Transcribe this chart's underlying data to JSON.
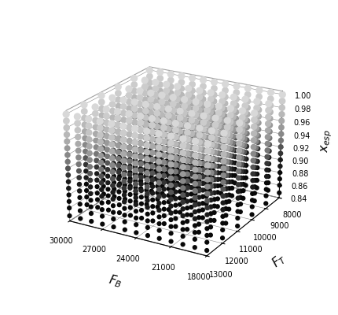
{
  "FB_values": [
    18000,
    19000,
    20000,
    21000,
    22000,
    23000,
    24000,
    25000,
    26000,
    27000,
    28000,
    29000,
    30000
  ],
  "FT_values": [
    8000,
    9000,
    10000,
    11000,
    12000,
    13000
  ],
  "xesp_levels": [
    0.848,
    0.86,
    0.87,
    0.88,
    0.89,
    0.9,
    0.91,
    0.92,
    0.93,
    0.94,
    0.95,
    0.96,
    0.97,
    0.98,
    0.99,
    0.9997
  ],
  "FB_ticks": [
    18000,
    21000,
    24000,
    27000,
    30000
  ],
  "FT_ticks": [
    8000,
    9000,
    10000,
    11000,
    12000,
    13000
  ],
  "xesp_ticks": [
    0.84,
    0.86,
    0.88,
    0.9,
    0.92,
    0.94,
    0.96,
    0.98,
    1.0
  ],
  "xlabel": "$F_B$",
  "ylabel": "$F_T$",
  "zlabel": "$x_{esp}$",
  "FB_min": 18000,
  "FB_max": 30000,
  "FT_min": 8000,
  "FT_max": 13000,
  "xesp_min": 0.84,
  "xesp_max": 1.005,
  "background_color": "#ffffff",
  "elev": 22,
  "azim": -60
}
